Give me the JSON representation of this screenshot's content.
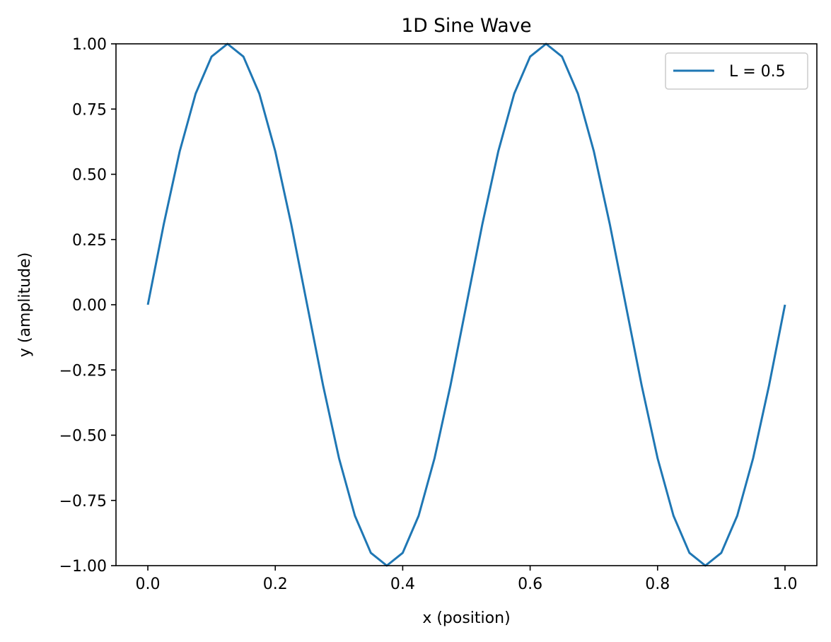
{
  "chart_data": {
    "type": "line",
    "title": "1D Sine Wave",
    "xlabel": "x (position)",
    "ylabel": "y (amplitude)",
    "xlim": [
      -0.05,
      1.05
    ],
    "ylim": [
      -1.0,
      1.0
    ],
    "grid": false,
    "legend_position": "top-right",
    "x_ticks": [
      {
        "value": 0.0,
        "label": "0.0"
      },
      {
        "value": 0.2,
        "label": "0.2"
      },
      {
        "value": 0.4,
        "label": "0.4"
      },
      {
        "value": 0.6,
        "label": "0.6"
      },
      {
        "value": 0.8,
        "label": "0.8"
      },
      {
        "value": 1.0,
        "label": "1.0"
      }
    ],
    "y_ticks": [
      {
        "value": 1.0,
        "label": "1.00"
      },
      {
        "value": 0.75,
        "label": "0.75"
      },
      {
        "value": 0.5,
        "label": "0.50"
      },
      {
        "value": 0.25,
        "label": "0.25"
      },
      {
        "value": 0.0,
        "label": "0.00"
      },
      {
        "value": -0.25,
        "label": "−0.25"
      },
      {
        "value": -0.5,
        "label": "−0.50"
      },
      {
        "value": -0.75,
        "label": "−0.75"
      },
      {
        "value": -1.0,
        "label": "−1.00"
      }
    ],
    "series": [
      {
        "name": "L = 0.5",
        "color": "#1f77b4",
        "x": [
          0.0,
          0.025,
          0.05,
          0.075,
          0.1,
          0.125,
          0.15,
          0.175,
          0.2,
          0.225,
          0.25,
          0.275,
          0.3,
          0.325,
          0.35,
          0.375,
          0.4,
          0.425,
          0.45,
          0.475,
          0.5,
          0.525,
          0.55,
          0.575,
          0.6,
          0.625,
          0.65,
          0.675,
          0.7,
          0.725,
          0.75,
          0.775,
          0.8,
          0.825,
          0.85,
          0.875,
          0.9,
          0.925,
          0.95,
          0.975,
          1.0
        ],
        "y": [
          0.0,
          0.309,
          0.588,
          0.809,
          0.951,
          1.0,
          0.951,
          0.809,
          0.588,
          0.309,
          0.0,
          -0.309,
          -0.588,
          -0.809,
          -0.951,
          -1.0,
          -0.951,
          -0.809,
          -0.588,
          -0.309,
          0.0,
          0.309,
          0.588,
          0.809,
          0.951,
          1.0,
          0.951,
          0.809,
          0.588,
          0.309,
          0.0,
          -0.309,
          -0.588,
          -0.809,
          -0.951,
          -1.0,
          -0.951,
          -0.809,
          -0.588,
          -0.309,
          0.0
        ]
      }
    ]
  }
}
